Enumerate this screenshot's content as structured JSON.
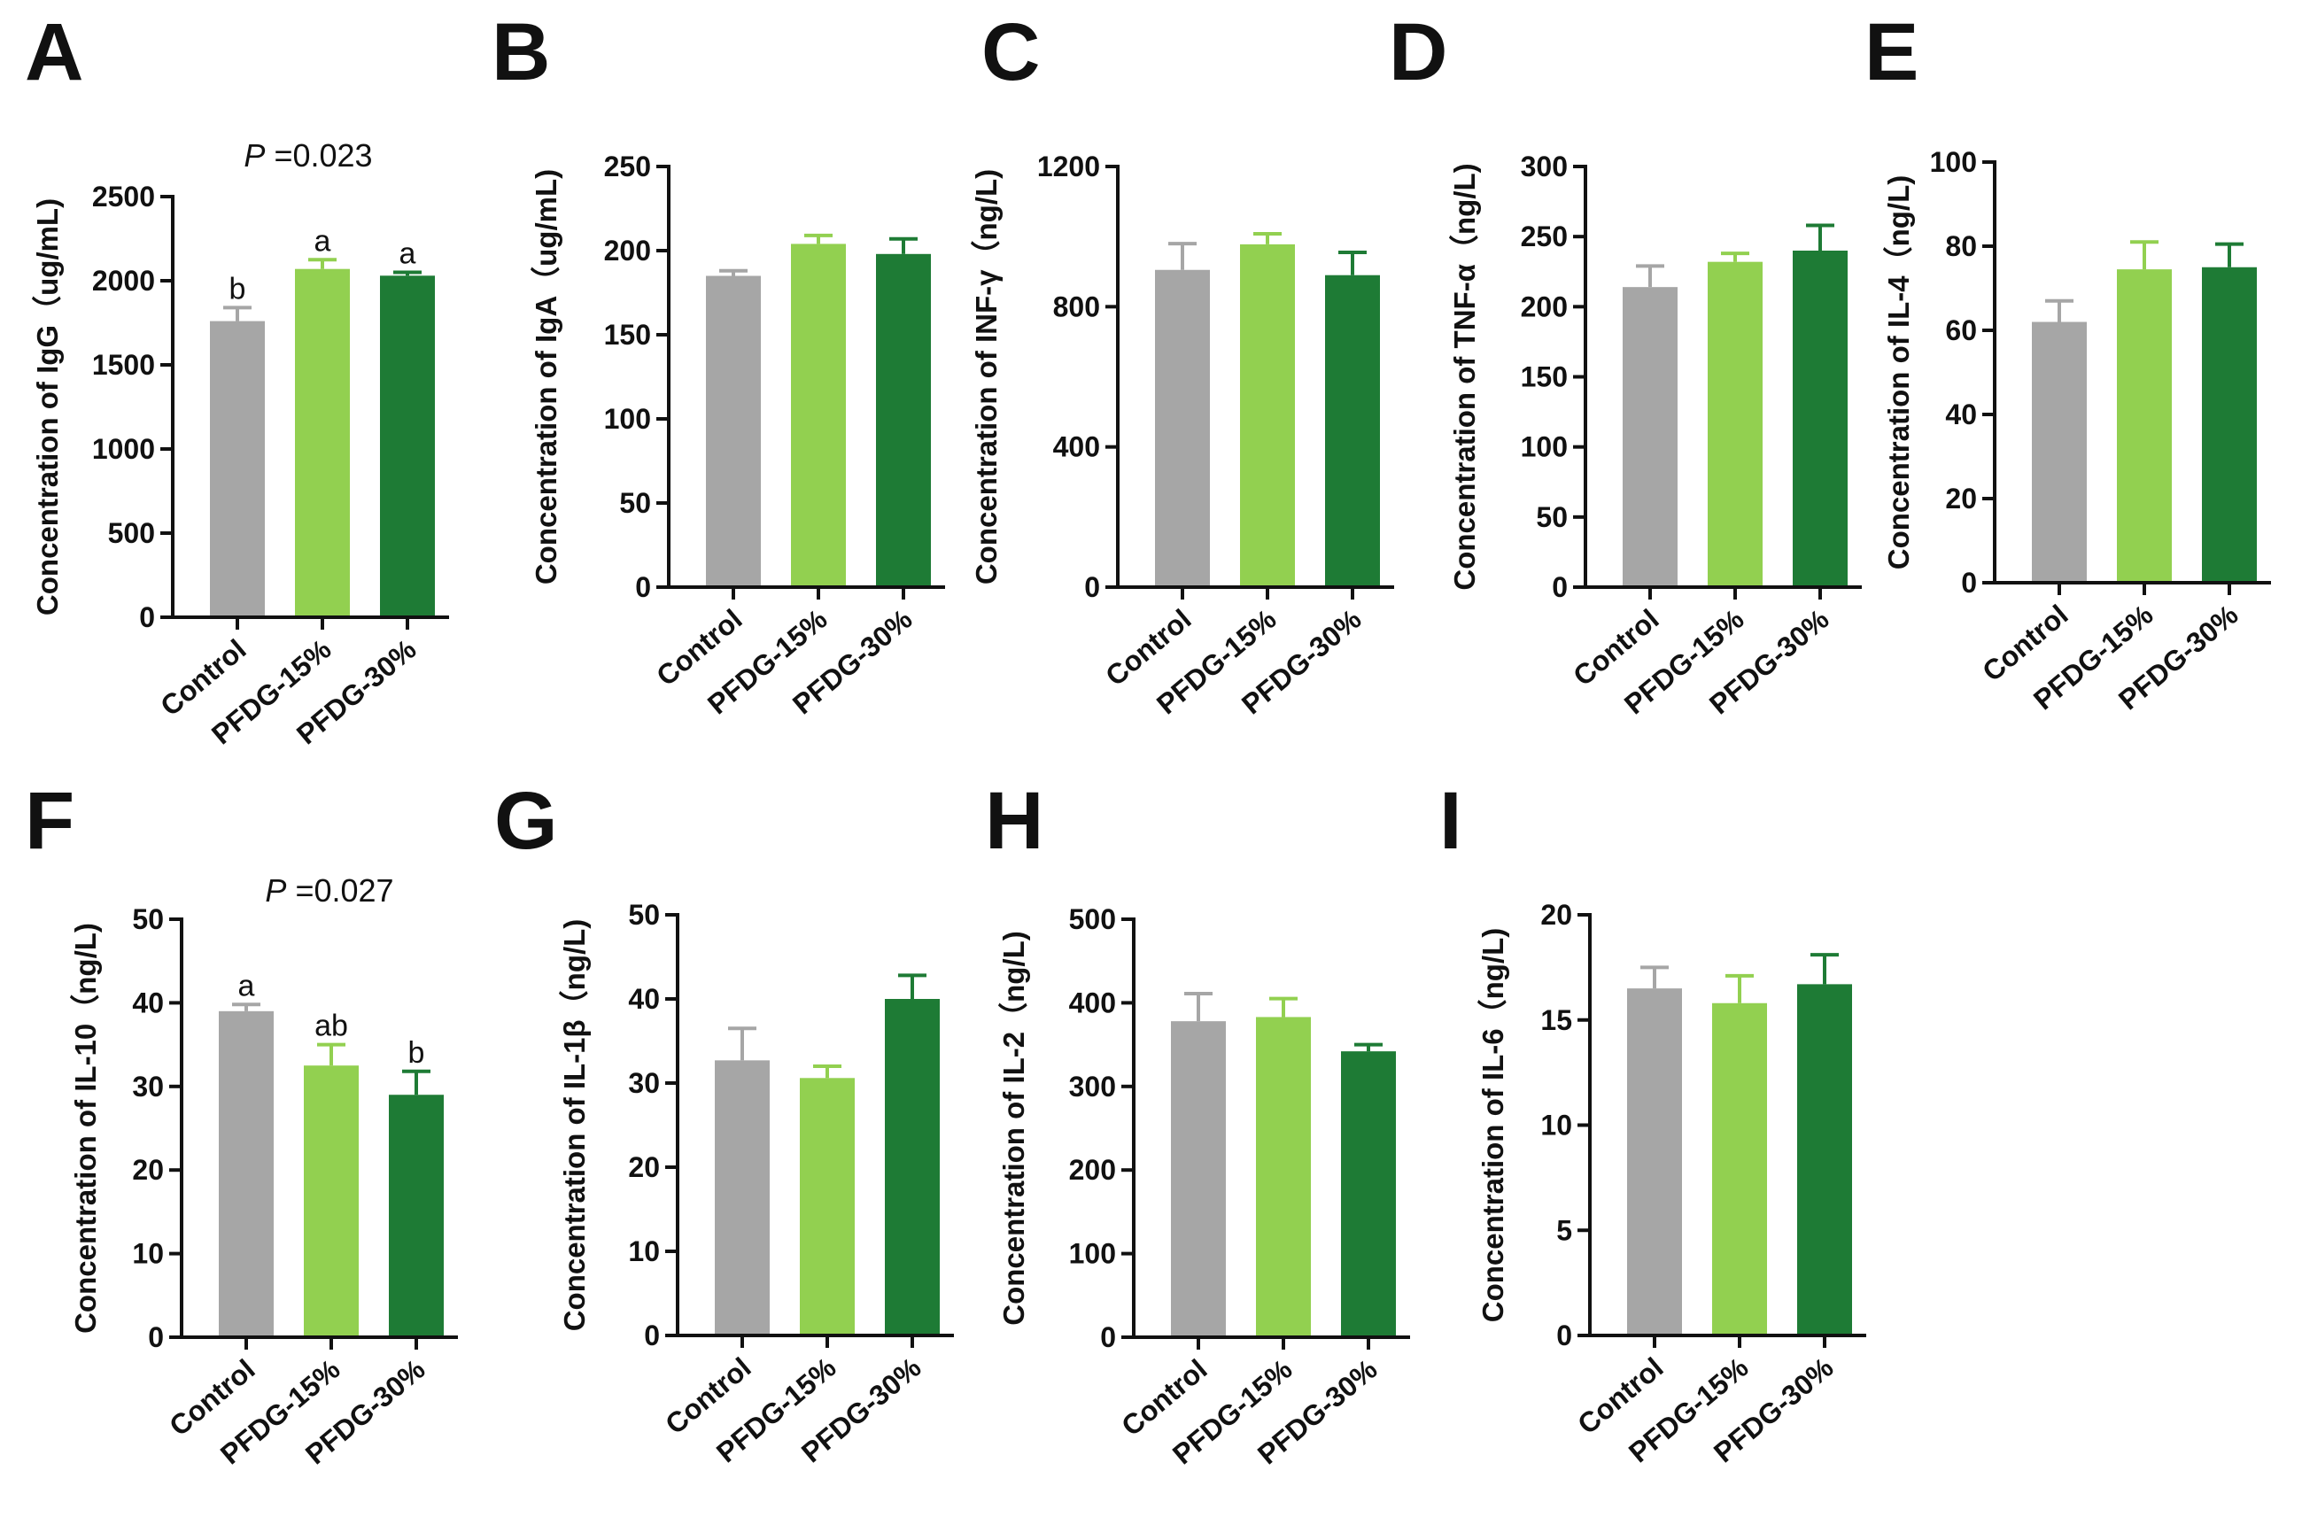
{
  "colors": {
    "Control": "#a6a6a6",
    "PFDG-15%": "#92d050",
    "PFDG-30%": "#1e7b35"
  },
  "chart_data": [
    {
      "panel": "A",
      "type": "bar",
      "categories": [
        "Control",
        "PFDG-15%",
        "PFDG-30%"
      ],
      "values": [
        1760,
        2070,
        2030
      ],
      "errors": [
        80,
        55,
        20
      ],
      "ylim": [
        0,
        2500
      ],
      "yticks": [
        0,
        500,
        1000,
        1500,
        2000,
        2500
      ],
      "ylabel": "Concentration of IgG（ug/mL)",
      "sig": [
        "b",
        "a",
        "a"
      ],
      "p_label": "P",
      "p_value": " =0.023"
    },
    {
      "panel": "B",
      "type": "bar",
      "categories": [
        "Control",
        "PFDG-15%",
        "PFDG-30%"
      ],
      "values": [
        185,
        204,
        198
      ],
      "errors": [
        3,
        5,
        9
      ],
      "ylim": [
        0,
        250
      ],
      "yticks": [
        0,
        50,
        100,
        150,
        200,
        250
      ],
      "ylabel": "Concentration of IgA（ug/mL)",
      "sig": [],
      "p_label": "",
      "p_value": ""
    },
    {
      "panel": "C",
      "type": "bar",
      "categories": [
        "Control",
        "PFDG-15%",
        "PFDG-30%"
      ],
      "values": [
        905,
        978,
        890
      ],
      "errors": [
        75,
        30,
        65
      ],
      "ylim": [
        0,
        1200
      ],
      "yticks": [
        0,
        400,
        800,
        1200
      ],
      "ylabel": "Concentration of INF-γ（ng/L)",
      "sig": [],
      "p_label": "",
      "p_value": ""
    },
    {
      "panel": "D",
      "type": "bar",
      "categories": [
        "Control",
        "PFDG-15%",
        "PFDG-30%"
      ],
      "values": [
        214,
        232,
        240
      ],
      "errors": [
        15,
        6,
        18
      ],
      "ylim": [
        0,
        300
      ],
      "yticks": [
        0,
        50,
        100,
        150,
        200,
        250,
        300
      ],
      "ylabel": "Concentration of TNF-α（ng/L)",
      "sig": [],
      "p_label": "",
      "p_value": ""
    },
    {
      "panel": "E",
      "type": "bar",
      "categories": [
        "Control",
        "PFDG-15%",
        "PFDG-30%"
      ],
      "values": [
        62,
        74.5,
        75
      ],
      "errors": [
        5,
        6.5,
        5.5
      ],
      "ylim": [
        0,
        100
      ],
      "yticks": [
        0,
        20,
        40,
        60,
        80,
        100
      ],
      "ylabel": "Concentration of IL-4（ng/L)",
      "sig": [],
      "p_label": "",
      "p_value": ""
    },
    {
      "panel": "F",
      "type": "bar",
      "categories": [
        "Control",
        "PFDG-15%",
        "PFDG-30%"
      ],
      "values": [
        39,
        32.5,
        29
      ],
      "errors": [
        0.8,
        2.5,
        2.8
      ],
      "ylim": [
        0,
        50
      ],
      "yticks": [
        0,
        10,
        20,
        30,
        40,
        50
      ],
      "ylabel": "Concentration of IL-10（ng/L)",
      "sig": [
        "a",
        "ab",
        "b"
      ],
      "p_label": "P",
      "p_value": " =0.027"
    },
    {
      "panel": "G",
      "type": "bar",
      "categories": [
        "Control",
        "PFDG-15%",
        "PFDG-30%"
      ],
      "values": [
        32.7,
        30.6,
        40
      ],
      "errors": [
        3.8,
        1.4,
        2.8
      ],
      "ylim": [
        0,
        50
      ],
      "yticks": [
        0,
        10,
        20,
        30,
        40,
        50
      ],
      "ylabel": "Concentration of IL-1β（ng/L)",
      "sig": [],
      "p_label": "",
      "p_value": ""
    },
    {
      "panel": "H",
      "type": "bar",
      "categories": [
        "Control",
        "PFDG-15%",
        "PFDG-30%"
      ],
      "values": [
        378,
        383,
        342
      ],
      "errors": [
        33,
        22,
        8
      ],
      "ylim": [
        0,
        500
      ],
      "yticks": [
        0,
        100,
        200,
        300,
        400,
        500
      ],
      "ylabel": "Concentration of IL-2（ng/L)",
      "sig": [],
      "p_label": "",
      "p_value": ""
    },
    {
      "panel": "I",
      "type": "bar",
      "categories": [
        "Control",
        "PFDG-15%",
        "PFDG-30%"
      ],
      "values": [
        16.5,
        15.8,
        16.7
      ],
      "errors": [
        1,
        1.3,
        1.4
      ],
      "ylim": [
        0,
        20
      ],
      "yticks": [
        0,
        5,
        10,
        15,
        20
      ],
      "ylabel": "Concentration of IL-6（ng/L)",
      "sig": [],
      "p_label": "",
      "p_value": ""
    }
  ]
}
